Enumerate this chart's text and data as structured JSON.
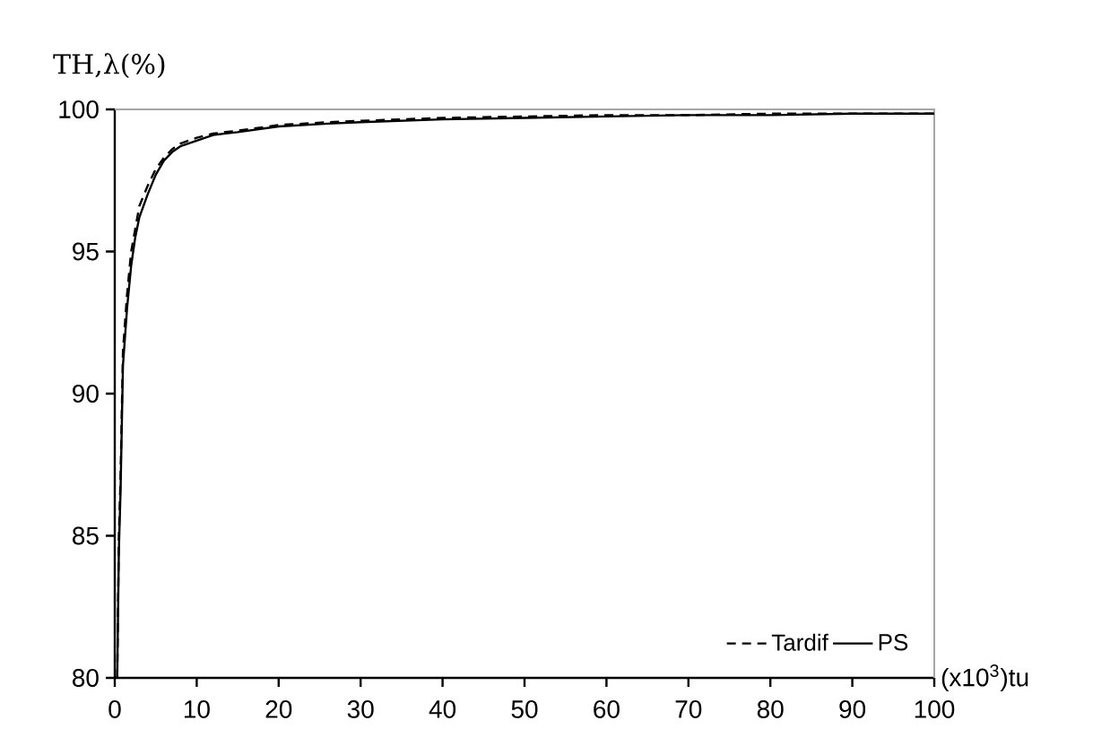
{
  "chart_data": {
    "type": "line",
    "ylabel": "TH,λ(%)",
    "xlabel": "(x10$^{3}$)tu",
    "xlim": [
      0,
      100
    ],
    "ylim": [
      80,
      100
    ],
    "xticks": [
      0,
      10,
      20,
      30,
      40,
      50,
      60,
      70,
      80,
      90,
      100
    ],
    "yticks": [
      80,
      85,
      90,
      95,
      100
    ],
    "grid": false,
    "legend": "bottom right",
    "series": [
      {
        "name": "Tardif",
        "color": "#000000",
        "line_style": "dashed",
        "x": [
          0.3,
          0.5,
          0.7,
          1,
          1.5,
          2,
          2.5,
          3,
          4,
          5,
          6,
          7,
          8,
          10,
          12,
          15,
          20,
          26,
          30,
          40,
          50,
          60,
          70,
          80,
          90,
          100
        ],
        "values": [
          80,
          85,
          87,
          91.5,
          93.5,
          95,
          95.8,
          96.6,
          97.3,
          97.9,
          98.3,
          98.6,
          98.8,
          99.0,
          99.15,
          99.25,
          99.45,
          99.55,
          99.6,
          99.7,
          99.75,
          99.8,
          99.8,
          99.85,
          99.85,
          99.85
        ]
      },
      {
        "name": "PS",
        "color": "#000000",
        "line_style": "solid",
        "x": [
          0.3,
          0.5,
          0.7,
          1,
          1.5,
          2,
          2.5,
          3,
          4,
          5,
          6,
          7,
          8,
          10,
          12,
          15,
          20,
          26,
          30,
          40,
          50,
          60,
          70,
          80,
          90,
          100
        ],
        "values": [
          80,
          84.5,
          86.5,
          91,
          93,
          94.5,
          95.5,
          96.2,
          97,
          97.7,
          98.2,
          98.5,
          98.7,
          98.9,
          99.1,
          99.2,
          99.4,
          99.5,
          99.55,
          99.65,
          99.7,
          99.75,
          99.8,
          99.8,
          99.85,
          99.85
        ]
      }
    ]
  }
}
